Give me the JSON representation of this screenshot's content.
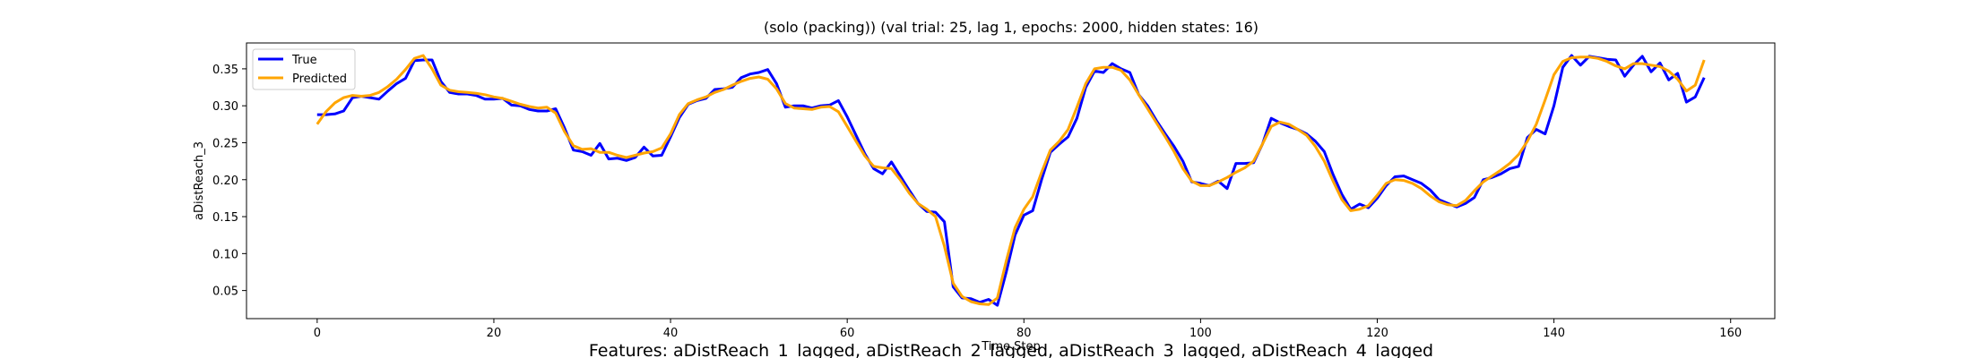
{
  "chart_data": {
    "type": "line",
    "title": "(solo (packing)) (val trial: 25, lag 1, epochs: 2000, hidden states: 16)",
    "xlabel": "Time Step",
    "ylabel": "aDistReach_3",
    "caption": "Features: aDistReach_1_lagged, aDistReach_2_lagged, aDistReach_3_lagged, aDistReach_4_lagged",
    "xlim": [
      -8,
      165
    ],
    "ylim": [
      0.012,
      0.385
    ],
    "xticks": [
      0,
      20,
      40,
      60,
      80,
      100,
      120,
      140,
      160
    ],
    "yticks": [
      0.05,
      0.1,
      0.15,
      0.2,
      0.25,
      0.3,
      0.35
    ],
    "xtick_labels": [
      "0",
      "20",
      "40",
      "60",
      "80",
      "100",
      "120",
      "140",
      "160"
    ],
    "ytick_labels": [
      "0.05",
      "0.10",
      "0.15",
      "0.20",
      "0.25",
      "0.30",
      "0.35"
    ],
    "legend_position": "upper-left",
    "grid": false,
    "series": [
      {
        "name": "True",
        "color": "#0000ff",
        "points": [
          [
            0,
            0.288
          ],
          [
            1,
            0.288
          ],
          [
            2,
            0.289
          ],
          [
            3,
            0.293
          ],
          [
            4,
            0.311
          ],
          [
            5,
            0.313
          ],
          [
            6,
            0.311
          ],
          [
            7,
            0.309
          ],
          [
            8,
            0.32
          ],
          [
            9,
            0.33
          ],
          [
            10,
            0.337
          ],
          [
            11,
            0.361
          ],
          [
            12,
            0.362
          ],
          [
            13,
            0.362
          ],
          [
            14,
            0.333
          ],
          [
            15,
            0.318
          ],
          [
            16,
            0.316
          ],
          [
            17,
            0.316
          ],
          [
            18,
            0.314
          ],
          [
            19,
            0.309
          ],
          [
            20,
            0.309
          ],
          [
            21,
            0.31
          ],
          [
            22,
            0.301
          ],
          [
            23,
            0.3
          ],
          [
            24,
            0.295
          ],
          [
            25,
            0.293
          ],
          [
            26,
            0.293
          ],
          [
            27,
            0.296
          ],
          [
            28,
            0.27
          ],
          [
            29,
            0.24
          ],
          [
            30,
            0.238
          ],
          [
            31,
            0.233
          ],
          [
            32,
            0.249
          ],
          [
            33,
            0.228
          ],
          [
            34,
            0.229
          ],
          [
            35,
            0.226
          ],
          [
            36,
            0.23
          ],
          [
            37,
            0.244
          ],
          [
            38,
            0.232
          ],
          [
            39,
            0.233
          ],
          [
            40,
            0.258
          ],
          [
            41,
            0.284
          ],
          [
            42,
            0.302
          ],
          [
            43,
            0.307
          ],
          [
            44,
            0.31
          ],
          [
            45,
            0.322
          ],
          [
            46,
            0.323
          ],
          [
            47,
            0.325
          ],
          [
            48,
            0.338
          ],
          [
            49,
            0.343
          ],
          [
            50,
            0.345
          ],
          [
            51,
            0.349
          ],
          [
            52,
            0.33
          ],
          [
            53,
            0.298
          ],
          [
            54,
            0.3
          ],
          [
            55,
            0.3
          ],
          [
            56,
            0.297
          ],
          [
            57,
            0.3
          ],
          [
            58,
            0.301
          ],
          [
            59,
            0.307
          ],
          [
            60,
            0.285
          ],
          [
            61,
            0.26
          ],
          [
            62,
            0.235
          ],
          [
            63,
            0.215
          ],
          [
            64,
            0.208
          ],
          [
            65,
            0.224
          ],
          [
            66,
            0.205
          ],
          [
            67,
            0.186
          ],
          [
            68,
            0.168
          ],
          [
            69,
            0.157
          ],
          [
            70,
            0.156
          ],
          [
            71,
            0.143
          ],
          [
            72,
            0.055
          ],
          [
            73,
            0.04
          ],
          [
            74,
            0.039
          ],
          [
            75,
            0.034
          ],
          [
            76,
            0.038
          ],
          [
            77,
            0.03
          ],
          [
            78,
            0.075
          ],
          [
            79,
            0.125
          ],
          [
            80,
            0.152
          ],
          [
            81,
            0.158
          ],
          [
            82,
            0.2
          ],
          [
            83,
            0.237
          ],
          [
            84,
            0.248
          ],
          [
            85,
            0.258
          ],
          [
            86,
            0.283
          ],
          [
            87,
            0.325
          ],
          [
            88,
            0.347
          ],
          [
            89,
            0.345
          ],
          [
            90,
            0.357
          ],
          [
            91,
            0.35
          ],
          [
            92,
            0.345
          ],
          [
            93,
            0.315
          ],
          [
            94,
            0.3
          ],
          [
            95,
            0.28
          ],
          [
            96,
            0.262
          ],
          [
            97,
            0.245
          ],
          [
            98,
            0.225
          ],
          [
            99,
            0.197
          ],
          [
            100,
            0.195
          ],
          [
            101,
            0.192
          ],
          [
            102,
            0.198
          ],
          [
            103,
            0.188
          ],
          [
            104,
            0.222
          ],
          [
            105,
            0.222
          ],
          [
            106,
            0.223
          ],
          [
            107,
            0.248
          ],
          [
            108,
            0.283
          ],
          [
            109,
            0.277
          ],
          [
            110,
            0.272
          ],
          [
            111,
            0.268
          ],
          [
            112,
            0.262
          ],
          [
            113,
            0.252
          ],
          [
            114,
            0.238
          ],
          [
            115,
            0.207
          ],
          [
            116,
            0.18
          ],
          [
            117,
            0.16
          ],
          [
            118,
            0.167
          ],
          [
            119,
            0.162
          ],
          [
            120,
            0.175
          ],
          [
            121,
            0.192
          ],
          [
            122,
            0.204
          ],
          [
            123,
            0.205
          ],
          [
            124,
            0.2
          ],
          [
            125,
            0.195
          ],
          [
            126,
            0.186
          ],
          [
            127,
            0.173
          ],
          [
            128,
            0.168
          ],
          [
            129,
            0.163
          ],
          [
            130,
            0.168
          ],
          [
            131,
            0.176
          ],
          [
            132,
            0.2
          ],
          [
            133,
            0.203
          ],
          [
            134,
            0.208
          ],
          [
            135,
            0.215
          ],
          [
            136,
            0.218
          ],
          [
            137,
            0.257
          ],
          [
            138,
            0.268
          ],
          [
            139,
            0.262
          ],
          [
            140,
            0.3
          ],
          [
            141,
            0.352
          ],
          [
            142,
            0.368
          ],
          [
            143,
            0.355
          ],
          [
            144,
            0.367
          ],
          [
            145,
            0.365
          ],
          [
            146,
            0.363
          ],
          [
            147,
            0.362
          ],
          [
            148,
            0.34
          ],
          [
            149,
            0.355
          ],
          [
            150,
            0.367
          ],
          [
            151,
            0.346
          ],
          [
            152,
            0.358
          ],
          [
            153,
            0.335
          ],
          [
            154,
            0.344
          ],
          [
            155,
            0.305
          ],
          [
            156,
            0.312
          ],
          [
            157,
            0.338
          ]
        ]
      },
      {
        "name": "Predicted",
        "color": "#ffa500",
        "points": [
          [
            0,
            0.275
          ],
          [
            1,
            0.292
          ],
          [
            2,
            0.304
          ],
          [
            3,
            0.311
          ],
          [
            4,
            0.314
          ],
          [
            5,
            0.313
          ],
          [
            6,
            0.314
          ],
          [
            7,
            0.318
          ],
          [
            8,
            0.326
          ],
          [
            9,
            0.336
          ],
          [
            10,
            0.349
          ],
          [
            11,
            0.364
          ],
          [
            12,
            0.368
          ],
          [
            13,
            0.35
          ],
          [
            14,
            0.328
          ],
          [
            15,
            0.321
          ],
          [
            16,
            0.319
          ],
          [
            17,
            0.318
          ],
          [
            18,
            0.317
          ],
          [
            19,
            0.315
          ],
          [
            20,
            0.312
          ],
          [
            21,
            0.31
          ],
          [
            22,
            0.306
          ],
          [
            23,
            0.302
          ],
          [
            24,
            0.299
          ],
          [
            25,
            0.297
          ],
          [
            26,
            0.298
          ],
          [
            27,
            0.29
          ],
          [
            28,
            0.265
          ],
          [
            29,
            0.246
          ],
          [
            30,
            0.241
          ],
          [
            31,
            0.242
          ],
          [
            32,
            0.237
          ],
          [
            33,
            0.237
          ],
          [
            34,
            0.233
          ],
          [
            35,
            0.23
          ],
          [
            36,
            0.233
          ],
          [
            37,
            0.236
          ],
          [
            38,
            0.238
          ],
          [
            39,
            0.243
          ],
          [
            40,
            0.262
          ],
          [
            41,
            0.288
          ],
          [
            42,
            0.303
          ],
          [
            43,
            0.308
          ],
          [
            44,
            0.312
          ],
          [
            45,
            0.318
          ],
          [
            46,
            0.322
          ],
          [
            47,
            0.328
          ],
          [
            48,
            0.333
          ],
          [
            49,
            0.337
          ],
          [
            50,
            0.339
          ],
          [
            51,
            0.336
          ],
          [
            52,
            0.323
          ],
          [
            53,
            0.303
          ],
          [
            54,
            0.297
          ],
          [
            55,
            0.296
          ],
          [
            56,
            0.295
          ],
          [
            57,
            0.298
          ],
          [
            58,
            0.299
          ],
          [
            59,
            0.292
          ],
          [
            60,
            0.272
          ],
          [
            61,
            0.252
          ],
          [
            62,
            0.232
          ],
          [
            63,
            0.218
          ],
          [
            64,
            0.216
          ],
          [
            65,
            0.215
          ],
          [
            66,
            0.2
          ],
          [
            67,
            0.182
          ],
          [
            68,
            0.168
          ],
          [
            69,
            0.16
          ],
          [
            70,
            0.15
          ],
          [
            71,
            0.11
          ],
          [
            72,
            0.06
          ],
          [
            73,
            0.042
          ],
          [
            74,
            0.035
          ],
          [
            75,
            0.032
          ],
          [
            76,
            0.031
          ],
          [
            77,
            0.04
          ],
          [
            78,
            0.09
          ],
          [
            79,
            0.135
          ],
          [
            80,
            0.16
          ],
          [
            81,
            0.177
          ],
          [
            82,
            0.21
          ],
          [
            83,
            0.24
          ],
          [
            84,
            0.252
          ],
          [
            85,
            0.268
          ],
          [
            86,
            0.298
          ],
          [
            87,
            0.33
          ],
          [
            88,
            0.35
          ],
          [
            89,
            0.352
          ],
          [
            90,
            0.352
          ],
          [
            91,
            0.348
          ],
          [
            92,
            0.335
          ],
          [
            93,
            0.315
          ],
          [
            94,
            0.296
          ],
          [
            95,
            0.277
          ],
          [
            96,
            0.258
          ],
          [
            97,
            0.238
          ],
          [
            98,
            0.215
          ],
          [
            99,
            0.198
          ],
          [
            100,
            0.192
          ],
          [
            101,
            0.192
          ],
          [
            102,
            0.197
          ],
          [
            103,
            0.203
          ],
          [
            104,
            0.21
          ],
          [
            105,
            0.216
          ],
          [
            106,
            0.225
          ],
          [
            107,
            0.248
          ],
          [
            108,
            0.272
          ],
          [
            109,
            0.278
          ],
          [
            110,
            0.275
          ],
          [
            111,
            0.268
          ],
          [
            112,
            0.26
          ],
          [
            113,
            0.245
          ],
          [
            114,
            0.225
          ],
          [
            115,
            0.198
          ],
          [
            116,
            0.173
          ],
          [
            117,
            0.158
          ],
          [
            118,
            0.16
          ],
          [
            119,
            0.165
          ],
          [
            120,
            0.179
          ],
          [
            121,
            0.195
          ],
          [
            122,
            0.2
          ],
          [
            123,
            0.199
          ],
          [
            124,
            0.195
          ],
          [
            125,
            0.188
          ],
          [
            126,
            0.178
          ],
          [
            127,
            0.17
          ],
          [
            128,
            0.166
          ],
          [
            129,
            0.165
          ],
          [
            130,
            0.172
          ],
          [
            131,
            0.185
          ],
          [
            132,
            0.197
          ],
          [
            133,
            0.205
          ],
          [
            134,
            0.213
          ],
          [
            135,
            0.222
          ],
          [
            136,
            0.234
          ],
          [
            137,
            0.252
          ],
          [
            138,
            0.275
          ],
          [
            139,
            0.308
          ],
          [
            140,
            0.342
          ],
          [
            141,
            0.36
          ],
          [
            142,
            0.365
          ],
          [
            143,
            0.366
          ],
          [
            144,
            0.366
          ],
          [
            145,
            0.364
          ],
          [
            146,
            0.36
          ],
          [
            147,
            0.354
          ],
          [
            148,
            0.35
          ],
          [
            149,
            0.357
          ],
          [
            150,
            0.357
          ],
          [
            151,
            0.355
          ],
          [
            152,
            0.353
          ],
          [
            153,
            0.347
          ],
          [
            154,
            0.336
          ],
          [
            155,
            0.32
          ],
          [
            156,
            0.328
          ],
          [
            157,
            0.362
          ]
        ]
      }
    ]
  }
}
